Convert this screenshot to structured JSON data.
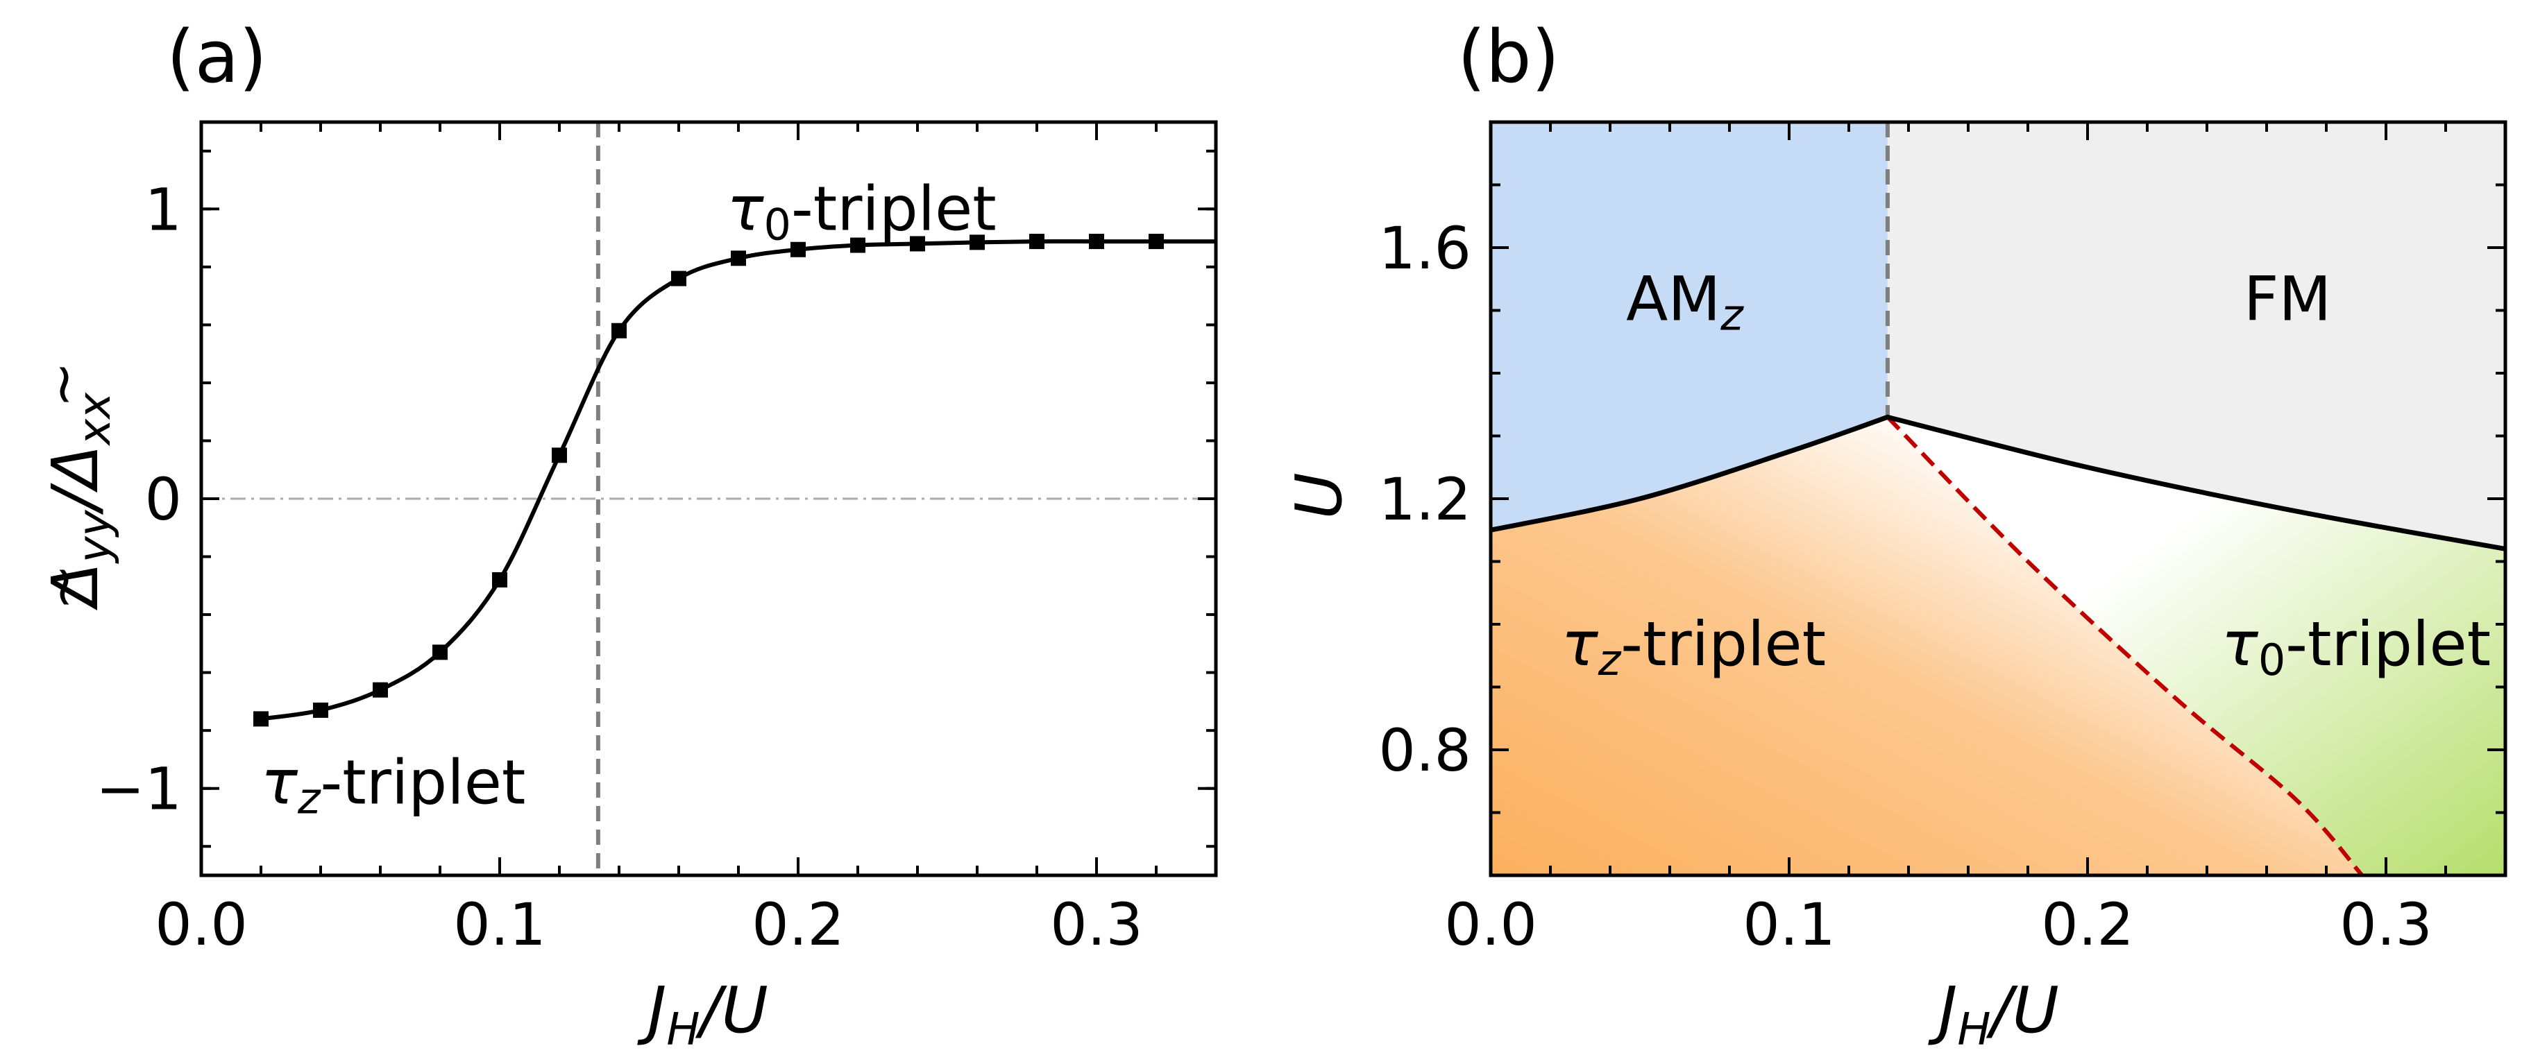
{
  "chart_data": [
    {
      "type": "line",
      "panel_label": "(a)",
      "xlabel": "J_H/U",
      "ylabel": "Δ̃yy/Δ̃xx",
      "xlim": [
        0.0,
        0.34
      ],
      "ylim": [
        -1.3,
        1.3
      ],
      "xticks": [
        0.0,
        0.1,
        0.2,
        0.3
      ],
      "xtick_labels": [
        "0.0",
        "0.1",
        "0.2",
        "0.3"
      ],
      "yticks": [
        -1,
        0,
        1
      ],
      "ytick_labels": [
        "−1",
        "0",
        "1"
      ],
      "grid": false,
      "x": [
        0.02,
        0.04,
        0.06,
        0.08,
        0.1,
        0.12,
        0.14,
        0.16,
        0.18,
        0.2,
        0.22,
        0.24,
        0.26,
        0.28,
        0.3,
        0.32,
        0.34
      ],
      "y": [
        -0.76,
        -0.73,
        -0.66,
        -0.53,
        -0.28,
        0.15,
        0.58,
        0.76,
        0.83,
        0.86,
        0.875,
        0.88,
        0.885,
        0.888,
        0.888,
        0.888,
        0.888
      ],
      "vline_x": 0.133,
      "hline_y": 0,
      "annotations": [
        {
          "text_main": "τ",
          "text_sub": "0",
          "text_rest": "-triplet",
          "x": 0.225,
          "y": 1.0
        },
        {
          "text_main": "τ",
          "text_sub": "z",
          "text_rest": "-triplet",
          "x": 0.02,
          "y": -0.98
        }
      ]
    },
    {
      "type": "phase_diagram",
      "panel_label": "(b)",
      "xlabel": "J_H/U",
      "ylabel": "U",
      "xlim": [
        0.0,
        0.34
      ],
      "ylim": [
        0.6,
        1.8
      ],
      "xticks": [
        0.0,
        0.1,
        0.2,
        0.3
      ],
      "xtick_labels": [
        "0.0",
        "0.1",
        "0.2",
        "0.3"
      ],
      "yticks": [
        0.8,
        1.2,
        1.6
      ],
      "ytick_labels": [
        "0.8",
        "1.2",
        "1.6"
      ],
      "grid": false,
      "boundary_left": {
        "x": [
          0.0,
          0.05,
          0.1,
          0.133
        ],
        "y": [
          1.15,
          1.2,
          1.275,
          1.33
        ]
      },
      "boundary_right": {
        "x": [
          0.133,
          0.2,
          0.27,
          0.34
        ],
        "y": [
          1.33,
          1.25,
          1.18,
          1.12
        ]
      },
      "vertical_boundary_x": 0.133,
      "crossover": {
        "x": [
          0.133,
          0.18,
          0.23,
          0.27,
          0.292
        ],
        "y": [
          1.33,
          1.1,
          0.88,
          0.72,
          0.6
        ]
      },
      "regions": [
        {
          "name": "AM",
          "sub": "z",
          "color": "#c6dbf5",
          "x": 0.065,
          "y": 1.52
        },
        {
          "name": "FM",
          "sub": "",
          "color": "#efefef",
          "x": 0.267,
          "y": 1.52
        },
        {
          "name": "τ",
          "sub": "z",
          "rest": "-triplet",
          "color": "#fbb05e",
          "x": 0.068,
          "y": 0.97
        },
        {
          "name": "τ",
          "sub": "0",
          "rest": "-triplet",
          "color": "#b9e06f",
          "x": 0.29,
          "y": 0.97
        }
      ],
      "crossover_color": "#c00000"
    }
  ]
}
